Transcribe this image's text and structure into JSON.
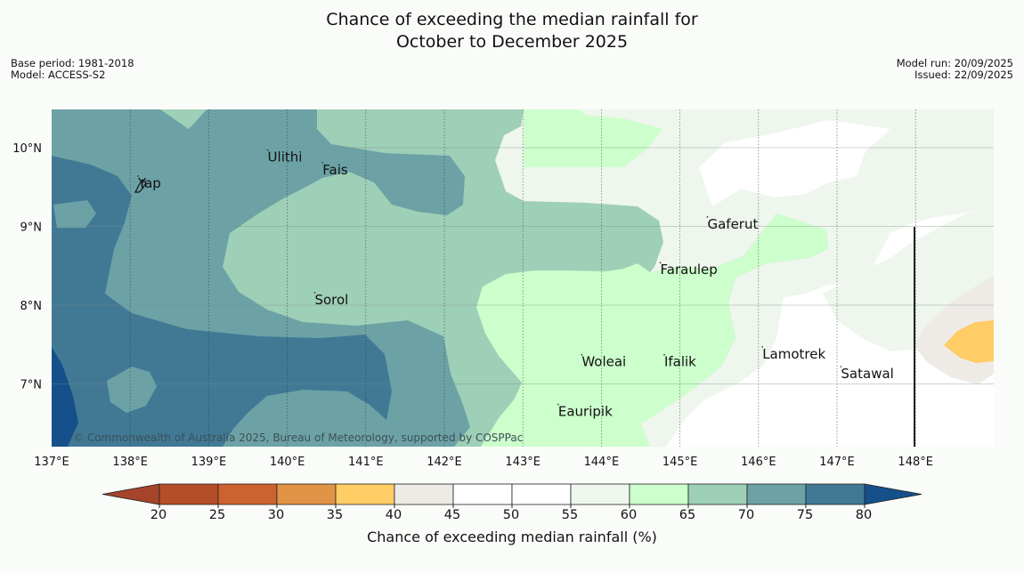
{
  "title": {
    "line1": "Chance of exceeding the median rainfall for",
    "line2": "October to December 2025"
  },
  "meta_left": {
    "base_period": "Base period: 1981-2018",
    "model": "Model: ACCESS-S2"
  },
  "meta_right": {
    "model_run": "Model run: 20/09/2025",
    "issued": "Issued: 22/09/2025"
  },
  "map": {
    "lon_range": [
      137,
      149
    ],
    "lat_range": [
      6.2,
      10.5
    ],
    "lon_ticks": [
      "137°E",
      "138°E",
      "139°E",
      "140°E",
      "141°E",
      "142°E",
      "143°E",
      "144°E",
      "145°E",
      "146°E",
      "147°E",
      "148°E"
    ],
    "lat_ticks": [
      "10°N",
      "9°N",
      "8°N",
      "7°N"
    ],
    "places": [
      {
        "name": "Yap",
        "lon": 138.1,
        "lat": 9.55
      },
      {
        "name": "Ulithi",
        "lon": 139.75,
        "lat": 9.88
      },
      {
        "name": "Fais",
        "lon": 140.45,
        "lat": 9.72
      },
      {
        "name": "Gaferut",
        "lon": 145.35,
        "lat": 9.03
      },
      {
        "name": "Faraulep",
        "lon": 144.75,
        "lat": 8.45
      },
      {
        "name": "Sorol",
        "lon": 140.35,
        "lat": 8.07
      },
      {
        "name": "Lamotrek",
        "lon": 146.05,
        "lat": 7.38
      },
      {
        "name": "Satawal",
        "lon": 147.05,
        "lat": 7.13
      },
      {
        "name": "Woleai",
        "lon": 143.75,
        "lat": 7.28
      },
      {
        "name": "Ifalik",
        "lon": 144.8,
        "lat": 7.28
      },
      {
        "name": "Eauripik",
        "lon": 143.45,
        "lat": 6.65
      }
    ],
    "copyright": "© Commonwealth of Australia 2025, Bureau of Meteorology, supported by COSPPac"
  },
  "legend": {
    "label": "Chance of exceeding median rainfall (%)",
    "ticks": [
      "20",
      "25",
      "30",
      "35",
      "40",
      "45",
      "50",
      "55",
      "60",
      "65",
      "70",
      "75",
      "80"
    ],
    "colors": [
      "#a5442a",
      "#b54d28",
      "#cd6231",
      "#e29446",
      "#ffcc66",
      "#eeebe7",
      "#ffffff",
      "#ffffff",
      "#eef6ed",
      "#ccffcc",
      "#9ecfb7",
      "#6ca2a6",
      "#417995",
      "#15508a"
    ]
  },
  "colors": {
    "c75_80": "#417995",
    "c70_75": "#6ca2a6",
    "c65_70": "#9ecfb7",
    "c60_65": "#ccffcc",
    "c55_60": "#eef6ed",
    "c45_55": "#ffffff",
    "c40_45": "#eeebe7",
    "c35_40": "#ffcc66",
    "c80plus": "#15508a",
    "background": "#fafcf9"
  }
}
